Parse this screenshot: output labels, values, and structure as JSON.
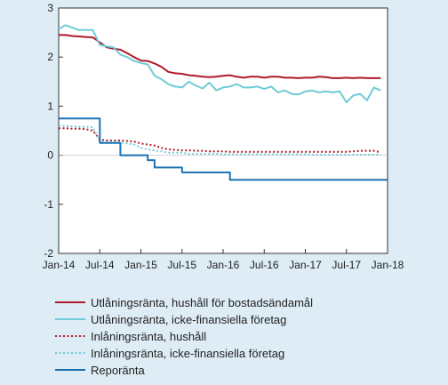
{
  "chart_data": {
    "type": "line",
    "x_ticks": [
      "Jan-14",
      "Jul-14",
      "Jan-15",
      "Jul-15",
      "Jan-16",
      "Jul-16",
      "Jan-17",
      "Jul-17",
      "Jan-18"
    ],
    "y_ticks": [
      "3",
      "2",
      "1",
      "0",
      "-1",
      "-2"
    ],
    "ylim": [
      -2,
      3
    ],
    "xlim": [
      "2014-01",
      "2018-01"
    ],
    "grid": false,
    "legend_position": "bottom",
    "series": [
      {
        "name": "Utlåningsränta, hushåll för bostadsändamål",
        "color": "#b11a2b",
        "style": "solid",
        "x": [
          "2014-01",
          "2014-02",
          "2014-03",
          "2014-04",
          "2014-05",
          "2014-06",
          "2014-07",
          "2014-08",
          "2014-09",
          "2014-10",
          "2014-11",
          "2014-12",
          "2015-01",
          "2015-02",
          "2015-03",
          "2015-04",
          "2015-05",
          "2015-06",
          "2015-07",
          "2015-08",
          "2015-09",
          "2015-10",
          "2015-11",
          "2015-12",
          "2016-01",
          "2016-02",
          "2016-03",
          "2016-04",
          "2016-05",
          "2016-06",
          "2016-07",
          "2016-08",
          "2016-09",
          "2016-10",
          "2016-11",
          "2016-12",
          "2017-01",
          "2017-02",
          "2017-03",
          "2017-04",
          "2017-05",
          "2017-06",
          "2017-07",
          "2017-08",
          "2017-09",
          "2017-10",
          "2017-11",
          "2017-12"
        ],
        "y": [
          2.45,
          2.45,
          2.43,
          2.42,
          2.41,
          2.4,
          2.3,
          2.2,
          2.17,
          2.15,
          2.08,
          2.0,
          1.93,
          1.92,
          1.87,
          1.8,
          1.7,
          1.67,
          1.66,
          1.63,
          1.62,
          1.6,
          1.59,
          1.6,
          1.62,
          1.63,
          1.6,
          1.58,
          1.6,
          1.6,
          1.58,
          1.6,
          1.6,
          1.58,
          1.58,
          1.57,
          1.58,
          1.58,
          1.6,
          1.59,
          1.57,
          1.57,
          1.58,
          1.57,
          1.58,
          1.57,
          1.57,
          1.57
        ]
      },
      {
        "name": "Utlåningsränta, icke-finansiella företag",
        "color": "#6fcbd6",
        "style": "solid",
        "x": [
          "2014-01",
          "2014-02",
          "2014-03",
          "2014-04",
          "2014-05",
          "2014-06",
          "2014-07",
          "2014-08",
          "2014-09",
          "2014-10",
          "2014-11",
          "2014-12",
          "2015-01",
          "2015-02",
          "2015-03",
          "2015-04",
          "2015-05",
          "2015-06",
          "2015-07",
          "2015-08",
          "2015-09",
          "2015-10",
          "2015-11",
          "2015-12",
          "2016-01",
          "2016-02",
          "2016-03",
          "2016-04",
          "2016-05",
          "2016-06",
          "2016-07",
          "2016-08",
          "2016-09",
          "2016-10",
          "2016-11",
          "2016-12",
          "2017-01",
          "2017-02",
          "2017-03",
          "2017-04",
          "2017-05",
          "2017-06",
          "2017-07",
          "2017-08",
          "2017-09",
          "2017-10",
          "2017-11",
          "2017-12"
        ],
        "y": [
          2.57,
          2.65,
          2.6,
          2.55,
          2.55,
          2.55,
          2.25,
          2.22,
          2.2,
          2.05,
          2.0,
          1.92,
          1.88,
          1.85,
          1.62,
          1.55,
          1.45,
          1.4,
          1.38,
          1.5,
          1.42,
          1.36,
          1.48,
          1.32,
          1.38,
          1.4,
          1.45,
          1.38,
          1.38,
          1.4,
          1.35,
          1.4,
          1.28,
          1.32,
          1.25,
          1.24,
          1.3,
          1.32,
          1.28,
          1.3,
          1.28,
          1.3,
          1.08,
          1.22,
          1.25,
          1.12,
          1.38,
          1.32
        ]
      },
      {
        "name": "Inlåningsränta, hushåll",
        "color": "#b11a2b",
        "style": "dotted",
        "x": [
          "2014-01",
          "2014-02",
          "2014-03",
          "2014-04",
          "2014-05",
          "2014-06",
          "2014-07",
          "2014-08",
          "2014-09",
          "2014-10",
          "2014-11",
          "2014-12",
          "2015-01",
          "2015-02",
          "2015-03",
          "2015-04",
          "2015-05",
          "2015-06",
          "2015-07",
          "2015-08",
          "2015-09",
          "2015-10",
          "2015-11",
          "2015-12",
          "2016-01",
          "2016-02",
          "2016-03",
          "2016-04",
          "2016-05",
          "2016-06",
          "2016-07",
          "2016-08",
          "2016-09",
          "2016-10",
          "2016-11",
          "2016-12",
          "2017-01",
          "2017-02",
          "2017-03",
          "2017-04",
          "2017-05",
          "2017-06",
          "2017-07",
          "2017-08",
          "2017-09",
          "2017-10",
          "2017-11",
          "2017-12"
        ],
        "y": [
          0.55,
          0.55,
          0.54,
          0.54,
          0.53,
          0.5,
          0.32,
          0.3,
          0.3,
          0.3,
          0.29,
          0.28,
          0.24,
          0.22,
          0.2,
          0.15,
          0.12,
          0.11,
          0.1,
          0.1,
          0.09,
          0.09,
          0.08,
          0.08,
          0.08,
          0.07,
          0.07,
          0.07,
          0.07,
          0.07,
          0.07,
          0.07,
          0.07,
          0.07,
          0.07,
          0.07,
          0.07,
          0.07,
          0.07,
          0.07,
          0.07,
          0.07,
          0.07,
          0.08,
          0.09,
          0.09,
          0.09,
          0.06
        ]
      },
      {
        "name": "Inlåningsränta, icke-finansiella företag",
        "color": "#6fcbd6",
        "style": "dotted",
        "x": [
          "2014-01",
          "2014-02",
          "2014-03",
          "2014-04",
          "2014-05",
          "2014-06",
          "2014-07",
          "2014-08",
          "2014-09",
          "2014-10",
          "2014-11",
          "2014-12",
          "2015-01",
          "2015-02",
          "2015-03",
          "2015-04",
          "2015-05",
          "2015-06",
          "2015-07",
          "2015-08",
          "2015-09",
          "2015-10",
          "2015-11",
          "2015-12",
          "2016-01",
          "2016-02",
          "2016-03",
          "2016-04",
          "2016-05",
          "2016-06",
          "2016-07",
          "2016-08",
          "2016-09",
          "2016-10",
          "2016-11",
          "2016-12",
          "2017-01",
          "2017-02",
          "2017-03",
          "2017-04",
          "2017-05",
          "2017-06",
          "2017-07",
          "2017-08",
          "2017-09",
          "2017-10",
          "2017-11",
          "2017-12"
        ],
        "y": [
          0.6,
          0.6,
          0.59,
          0.58,
          0.58,
          0.57,
          0.28,
          0.27,
          0.27,
          0.26,
          0.24,
          0.22,
          0.15,
          0.12,
          0.1,
          0.08,
          0.05,
          0.05,
          0.05,
          0.03,
          0.03,
          0.03,
          0.03,
          0.03,
          0.02,
          0.02,
          0.02,
          0.02,
          0.02,
          0.02,
          0.02,
          0.02,
          0.02,
          0.02,
          0.02,
          0.02,
          0.02,
          0.01,
          0.01,
          0.01,
          0.01,
          0.01,
          0.01,
          0.01,
          0.01,
          0.01,
          0.01,
          0.01
        ]
      },
      {
        "name": "Reporänta",
        "color": "#1a72b5",
        "style": "step",
        "x": [
          "2014-01",
          "2014-07",
          "2014-10",
          "2015-02",
          "2015-03",
          "2015-07",
          "2016-02",
          "2018-01"
        ],
        "y": [
          0.75,
          0.25,
          0.0,
          -0.1,
          -0.25,
          -0.35,
          -0.5,
          -0.5
        ]
      }
    ]
  }
}
